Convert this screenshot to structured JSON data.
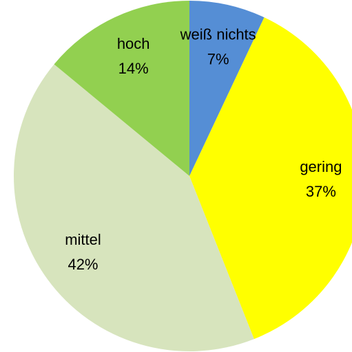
{
  "chart_data": {
    "type": "pie",
    "categories": [
      "weiß nichts",
      "gering",
      "mittel",
      "hoch"
    ],
    "values": [
      7,
      37,
      42,
      14
    ],
    "value_labels": [
      "7%",
      "37%",
      "42%",
      "14%"
    ],
    "colors": [
      "#558ed5",
      "#ffff00",
      "#d7e4bd",
      "#92d050"
    ]
  }
}
